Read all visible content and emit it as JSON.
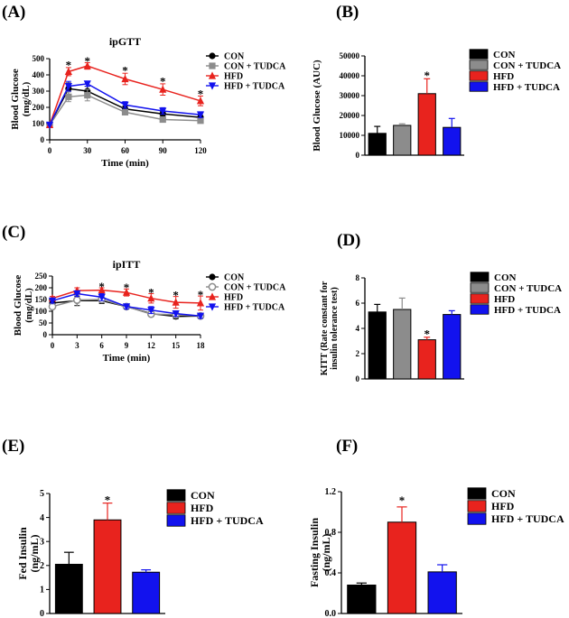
{
  "colors": {
    "con": "#000000",
    "con_tudca": "#8c8c8c",
    "hfd": "#e8231e",
    "hfd_tudca": "#1212ee"
  },
  "chart_data": [
    {
      "panel": "(A)",
      "type": "line",
      "title": "ipGTT",
      "xlabel": "Time (min)",
      "ylabel": "Blood Glucose (mg/dL)",
      "xlim": [
        0,
        120
      ],
      "ylim": [
        0,
        500
      ],
      "xticks": [
        0,
        30,
        60,
        90,
        120
      ],
      "yticks": [
        0,
        100,
        200,
        300,
        400,
        500
      ],
      "x": [
        0,
        15,
        30,
        60,
        90,
        120
      ],
      "series": [
        {
          "name": "CON",
          "color": "#000000",
          "marker": "circle",
          "values": [
            92,
            315,
            300,
            190,
            160,
            138
          ],
          "errors": [
            0,
            35,
            30,
            18,
            15,
            12
          ]
        },
        {
          "name": "CON + TUDCA",
          "color": "#8c8c8c",
          "marker": "square",
          "values": [
            92,
            265,
            275,
            170,
            125,
            118
          ],
          "errors": [
            0,
            30,
            35,
            15,
            12,
            10
          ]
        },
        {
          "name": "HFD",
          "color": "#e8231e",
          "marker": "triangle",
          "values": [
            92,
            420,
            455,
            375,
            310,
            240
          ],
          "errors": [
            0,
            25,
            20,
            35,
            35,
            30
          ]
        },
        {
          "name": "HFD + TUDCA",
          "color": "#1212ee",
          "marker": "triangle-down",
          "values": [
            92,
            330,
            345,
            215,
            178,
            155
          ],
          "errors": [
            0,
            30,
            15,
            20,
            20,
            18
          ]
        }
      ],
      "asterisks": [
        {
          "x": 15,
          "y": 465
        },
        {
          "x": 30,
          "y": 490
        },
        {
          "x": 60,
          "y": 430
        },
        {
          "x": 90,
          "y": 365
        },
        {
          "x": 120,
          "y": 285
        }
      ]
    },
    {
      "panel": "(B)",
      "type": "bar",
      "title": "",
      "xlabel": "",
      "ylabel": "Blood Glucose (AUC)",
      "ylim": [
        0,
        50000
      ],
      "yticks": [
        0,
        10000,
        20000,
        30000,
        40000,
        50000
      ],
      "categories": [
        "CON",
        "CON + TUDCA",
        "HFD",
        "HFD + TUDCA"
      ],
      "values": [
        11000,
        15000,
        31000,
        14000
      ],
      "errors": [
        3500,
        800,
        7500,
        4500
      ],
      "asterisks": [
        {
          "index": 2,
          "y": 40500
        }
      ]
    },
    {
      "panel": "(C)",
      "type": "line",
      "title": "ipITT",
      "xlabel": "Time (min)",
      "ylabel": "Blood Glucose (mg/dL)",
      "xlim": [
        0,
        18
      ],
      "ylim": [
        0,
        250
      ],
      "xticks": [
        0,
        3,
        6,
        9,
        12,
        15,
        18
      ],
      "yticks": [
        0,
        50,
        100,
        150,
        200,
        250
      ],
      "x": [
        0,
        3,
        6,
        9,
        12,
        15,
        18
      ],
      "series": [
        {
          "name": "CON",
          "color": "#000000",
          "marker": "circle",
          "values": [
            135,
            145,
            145,
            120,
            90,
            78,
            80
          ],
          "errors": [
            10,
            20,
            12,
            10,
            10,
            10,
            8
          ]
        },
        {
          "name": "CON + TUDCA",
          "color": "#8c8c8c",
          "marker": "circle-open",
          "values": [
            120,
            148,
            150,
            120,
            88,
            85,
            80
          ],
          "errors": [
            10,
            25,
            12,
            10,
            10,
            10,
            10
          ]
        },
        {
          "name": "HFD",
          "color": "#e8231e",
          "marker": "triangle",
          "values": [
            155,
            188,
            190,
            180,
            155,
            138,
            135
          ],
          "errors": [
            8,
            12,
            10,
            15,
            20,
            25,
            30
          ]
        },
        {
          "name": "HFD + TUDCA",
          "color": "#1212ee",
          "marker": "triangle-down",
          "values": [
            145,
            175,
            160,
            120,
            105,
            90,
            80
          ],
          "errors": [
            10,
            12,
            15,
            10,
            15,
            12,
            10
          ]
        }
      ],
      "asterisks": [
        {
          "x": 6,
          "y": 208
        },
        {
          "x": 9,
          "y": 203
        },
        {
          "x": 12,
          "y": 183
        },
        {
          "x": 15,
          "y": 171
        },
        {
          "x": 18,
          "y": 173
        }
      ]
    },
    {
      "panel": "(D)",
      "type": "bar",
      "title": "",
      "xlabel": "",
      "ylabel": "KITT (Rate constant for insulin tolerance test)",
      "ylabel_lines": [
        "KITT (Rate constant for",
        "insulin tolerance test)"
      ],
      "ylim": [
        0,
        8
      ],
      "yticks": [
        0,
        2,
        4,
        6,
        8
      ],
      "categories": [
        "CON",
        "CON + TUDCA",
        "HFD",
        "HFD + TUDCA"
      ],
      "values": [
        5.3,
        5.5,
        3.1,
        5.1
      ],
      "errors": [
        0.6,
        0.9,
        0.2,
        0.3
      ],
      "asterisks": [
        {
          "index": 2,
          "y": 3.6
        }
      ]
    },
    {
      "panel": "(E)",
      "type": "bar",
      "title": "",
      "xlabel": "",
      "ylabel": "Fed Insulin (ng/mL)",
      "ylim": [
        0,
        5
      ],
      "yticks": [
        0,
        1,
        2,
        3,
        4,
        5
      ],
      "categories": [
        "CON",
        "HFD",
        "HFD + TUDCA"
      ],
      "values": [
        2.05,
        3.9,
        1.72
      ],
      "errors": [
        0.5,
        0.7,
        0.1
      ],
      "asterisks": [
        {
          "index": 1,
          "y": 4.75
        }
      ]
    },
    {
      "panel": "(F)",
      "type": "bar",
      "title": "",
      "xlabel": "",
      "ylabel": "Fasting Insulin (ng/mL)",
      "ylim": [
        0,
        1.2
      ],
      "yticks": [
        0.0,
        0.4,
        0.8,
        1.2
      ],
      "ytick_labels": [
        "0.0",
        "0.4",
        "0.8",
        "1.2"
      ],
      "categories": [
        "CON",
        "HFD",
        "HFD + TUDCA"
      ],
      "values": [
        0.28,
        0.9,
        0.41
      ],
      "errors": [
        0.02,
        0.15,
        0.07
      ],
      "asterisks": [
        {
          "index": 1,
          "y": 1.12
        }
      ]
    }
  ]
}
